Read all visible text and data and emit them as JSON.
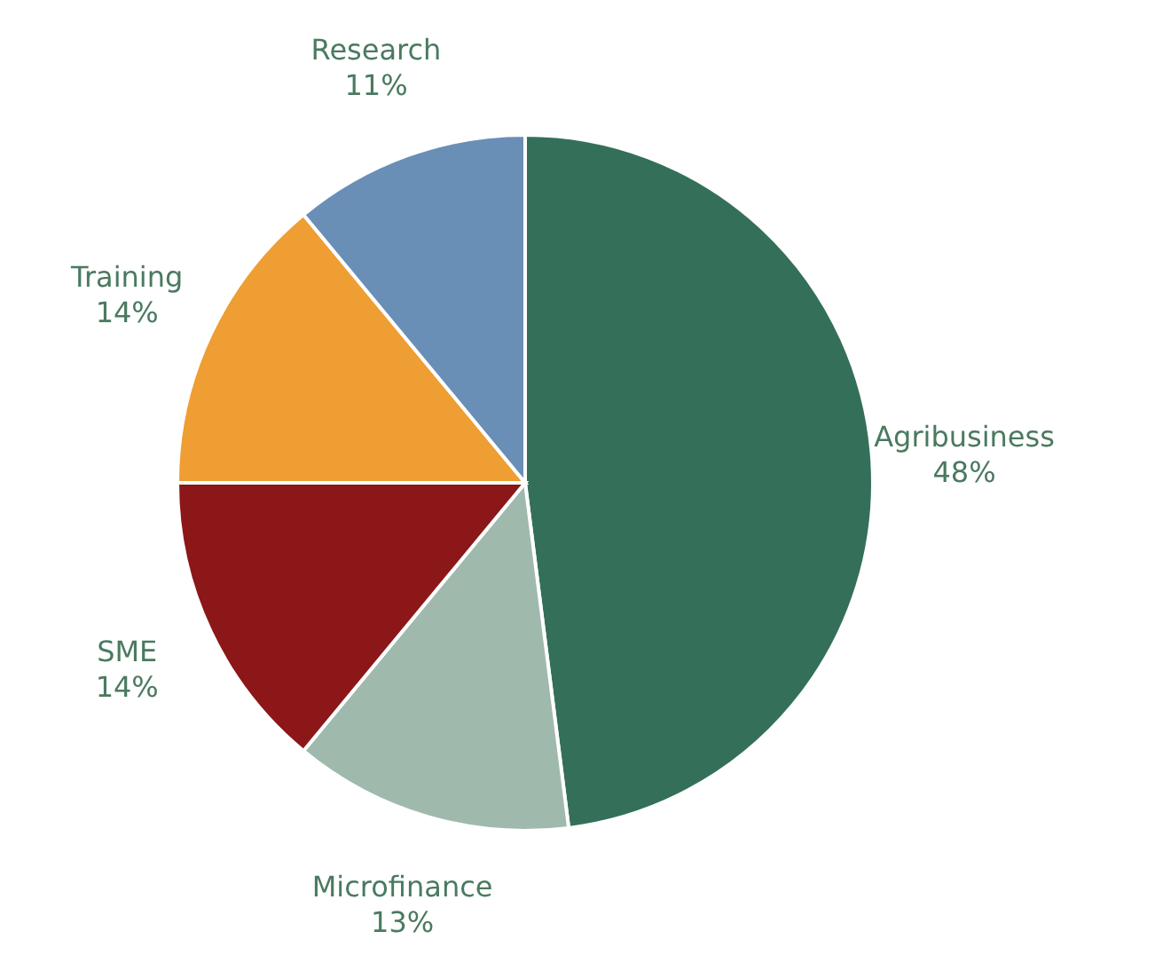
{
  "chart_data": {
    "type": "pie",
    "categories": [
      "Agribusiness",
      "Microfinance",
      "SME",
      "Training",
      "Research"
    ],
    "values": [
      48,
      13,
      14,
      14,
      11
    ],
    "colors": [
      "#347059",
      "#a0b9ad",
      "#8b1718",
      "#ee9e33",
      "#6a8fb6"
    ],
    "value_labels": [
      "48%",
      "13%",
      "14%",
      "14%",
      "11%"
    ]
  }
}
